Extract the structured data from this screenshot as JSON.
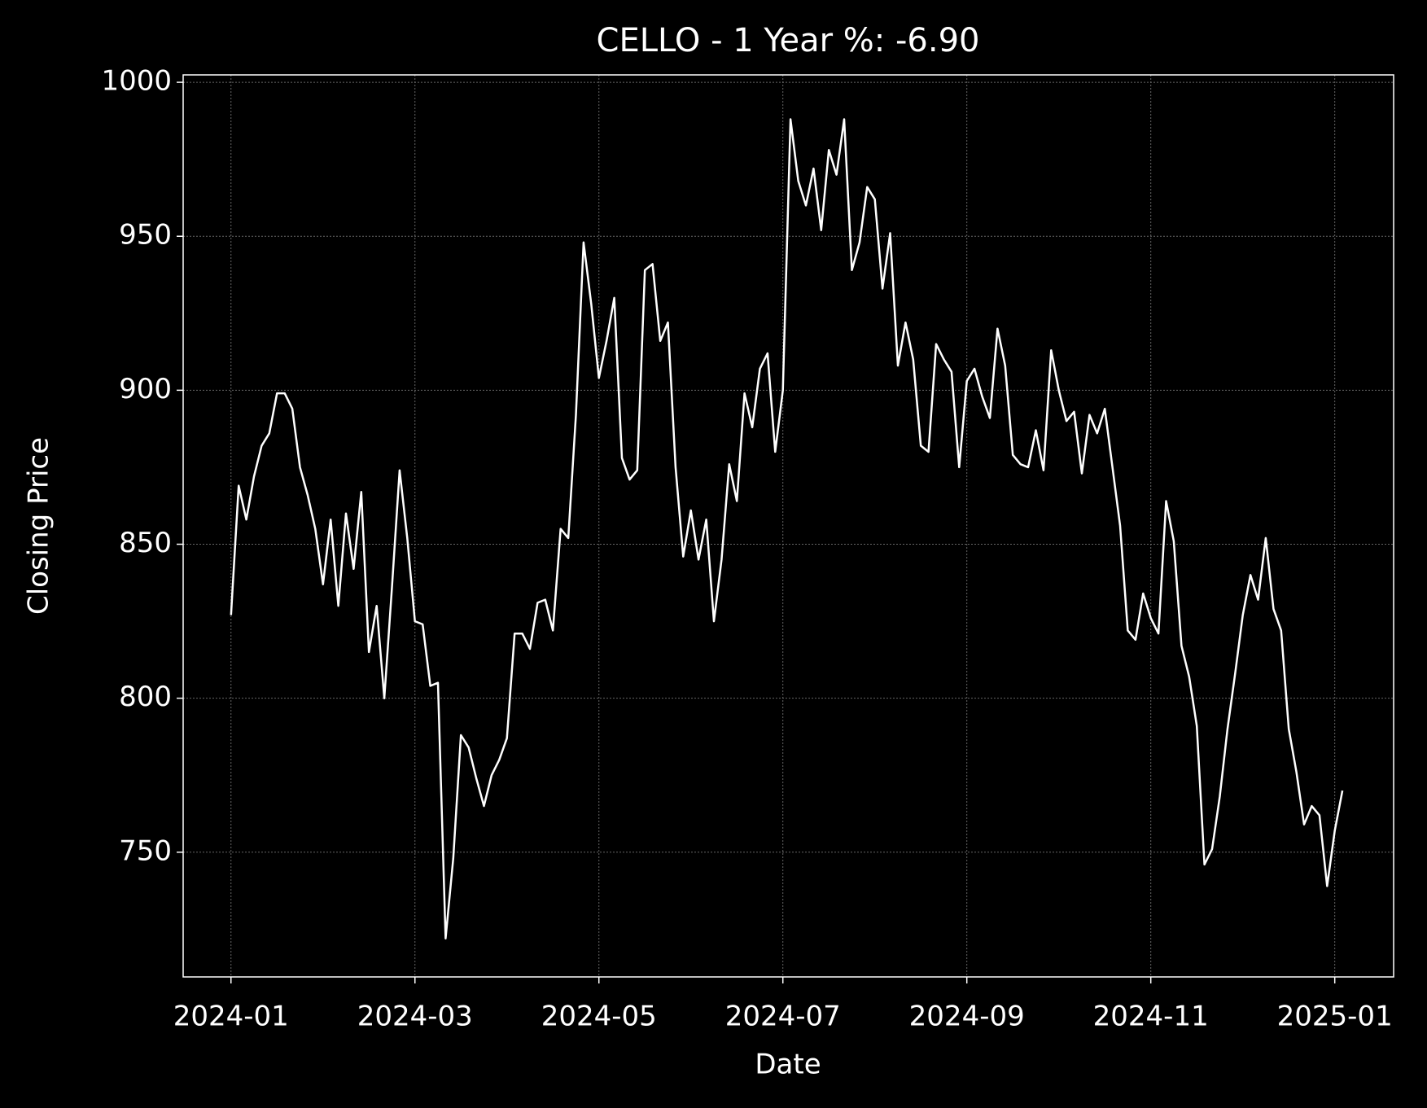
{
  "chart_data": {
    "type": "line",
    "title": "CELLO - 1 Year %: -6.90",
    "xlabel": "Date",
    "ylabel": "Closing Price",
    "x": [
      "2024-01",
      "2024-01",
      "2024-01",
      "2024-01",
      "2024-01",
      "2024-01",
      "2024-01",
      "2024-01",
      "2024-01",
      "2024-01",
      "2024-01",
      "2024-01",
      "2024-02",
      "2024-02",
      "2024-02",
      "2024-02",
      "2024-02",
      "2024-02",
      "2024-02",
      "2024-02",
      "2024-02",
      "2024-02",
      "2024-02",
      "2024-02",
      "2024-03",
      "2024-03",
      "2024-03",
      "2024-03",
      "2024-03",
      "2024-03",
      "2024-03",
      "2024-03",
      "2024-03",
      "2024-03",
      "2024-03",
      "2024-03",
      "2024-04",
      "2024-04",
      "2024-04",
      "2024-04",
      "2024-04",
      "2024-04",
      "2024-04",
      "2024-04",
      "2024-04",
      "2024-04",
      "2024-04",
      "2024-04",
      "2024-05",
      "2024-05",
      "2024-05",
      "2024-05",
      "2024-05",
      "2024-05",
      "2024-05",
      "2024-05",
      "2024-05",
      "2024-05",
      "2024-05",
      "2024-05",
      "2024-06",
      "2024-06",
      "2024-06",
      "2024-06",
      "2024-06",
      "2024-06",
      "2024-06",
      "2024-06",
      "2024-06",
      "2024-06",
      "2024-06",
      "2024-06",
      "2024-07",
      "2024-07",
      "2024-07",
      "2024-07",
      "2024-07",
      "2024-07",
      "2024-07",
      "2024-07",
      "2024-07",
      "2024-07",
      "2024-07",
      "2024-07",
      "2024-08",
      "2024-08",
      "2024-08",
      "2024-08",
      "2024-08",
      "2024-08",
      "2024-08",
      "2024-08",
      "2024-08",
      "2024-08",
      "2024-08",
      "2024-08",
      "2024-09",
      "2024-09",
      "2024-09",
      "2024-09",
      "2024-09",
      "2024-09",
      "2024-09",
      "2024-09",
      "2024-09",
      "2024-09",
      "2024-09",
      "2024-09",
      "2024-10",
      "2024-10",
      "2024-10",
      "2024-10",
      "2024-10",
      "2024-10",
      "2024-10",
      "2024-10",
      "2024-10",
      "2024-10",
      "2024-10",
      "2024-10",
      "2024-11",
      "2024-11",
      "2024-11",
      "2024-11",
      "2024-11",
      "2024-11",
      "2024-11",
      "2024-11",
      "2024-11",
      "2024-11",
      "2024-11",
      "2024-11",
      "2024-12",
      "2024-12",
      "2024-12",
      "2024-12",
      "2024-12",
      "2024-12",
      "2024-12",
      "2024-12",
      "2024-12",
      "2024-12",
      "2024-12",
      "2024-12",
      "2025-01",
      "2025-01"
    ],
    "series": [
      {
        "color": "#ffffff",
        "values": [
          827,
          869,
          858,
          872,
          882,
          886,
          899,
          899,
          894,
          875,
          866,
          855,
          837,
          858,
          830,
          860,
          842,
          867,
          815,
          830,
          800,
          836,
          874,
          852,
          825,
          824,
          804,
          805,
          722,
          748,
          788,
          784,
          774,
          765,
          775,
          780,
          787,
          821,
          821,
          816,
          831,
          832,
          822,
          855,
          852,
          892,
          948,
          928,
          904,
          916,
          930,
          878,
          871,
          874,
          939,
          941,
          916,
          922,
          875,
          846,
          861,
          845,
          858,
          825,
          845,
          876,
          864,
          899,
          888,
          907,
          912,
          880,
          900,
          988,
          968,
          960,
          972,
          952,
          978,
          970,
          988,
          939,
          948,
          966,
          962,
          933,
          951,
          908,
          922,
          910,
          882,
          880,
          915,
          910,
          906,
          875,
          903,
          907,
          898,
          891,
          920,
          908,
          879,
          876,
          875,
          887,
          874,
          913,
          900,
          890,
          893,
          873,
          892,
          886,
          894,
          875,
          856,
          822,
          819,
          834,
          826,
          821,
          864,
          851,
          817,
          807,
          791,
          746,
          751,
          768,
          790,
          808,
          827,
          840,
          832,
          852,
          829,
          822,
          790,
          776,
          759,
          765,
          762,
          739,
          757,
          770
        ]
      }
    ],
    "xlim": [
      "2023-12",
      "2025-01"
    ],
    "xticks": [
      "2024-01",
      "2024-03",
      "2024-05",
      "2024-07",
      "2024-09",
      "2024-11",
      "2025-01"
    ],
    "ylim": [
      709.5,
      1002.4
    ],
    "yticks": [
      750,
      800,
      850,
      900,
      950,
      1000
    ],
    "grid": true
  }
}
